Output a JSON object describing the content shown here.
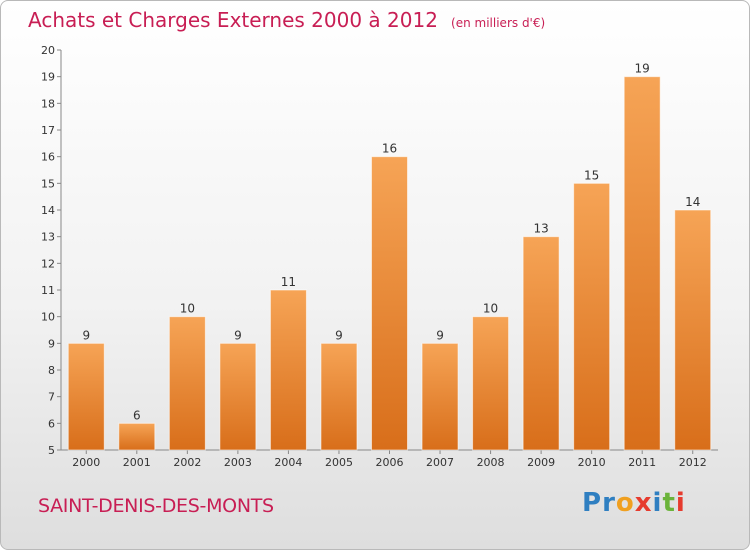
{
  "header": {
    "title": "Achats et Charges Externes 2000 à 2012",
    "subtitle": "(en milliers d'€)"
  },
  "footer": {
    "commune": "SAINT-DENIS-DES-MONTS"
  },
  "logo": {
    "text": "Proxiti",
    "letters": [
      {
        "ch": "P",
        "color": "#2f7fc1"
      },
      {
        "ch": "r",
        "color": "#2f7fc1"
      },
      {
        "ch": "o",
        "color": "#f0a020"
      },
      {
        "ch": "x",
        "color": "#e63b2e"
      },
      {
        "ch": "i",
        "color": "#2f7fc1"
      },
      {
        "ch": "t",
        "color": "#6bb33a"
      },
      {
        "ch": "i",
        "color": "#e63b2e"
      }
    ]
  },
  "colors": {
    "bar_light": "#f6a456",
    "bar_dark": "#d86e1a",
    "title": "#c81e54"
  },
  "chart_data": {
    "type": "bar",
    "categories": [
      "2000",
      "2001",
      "2002",
      "2003",
      "2004",
      "2005",
      "2006",
      "2007",
      "2008",
      "2009",
      "2010",
      "2011",
      "2012"
    ],
    "values": [
      9,
      6,
      10,
      9,
      11,
      9,
      16,
      9,
      10,
      13,
      15,
      19,
      14
    ],
    "title": "Achats et Charges Externes 2000 à 2012",
    "subtitle": "(en milliers d'€)",
    "ylim": [
      5,
      20
    ],
    "yticks": [
      5,
      6,
      7,
      8,
      9,
      10,
      11,
      12,
      13,
      14,
      15,
      16,
      17,
      18,
      19,
      20
    ],
    "grid": false,
    "legend": "none"
  }
}
